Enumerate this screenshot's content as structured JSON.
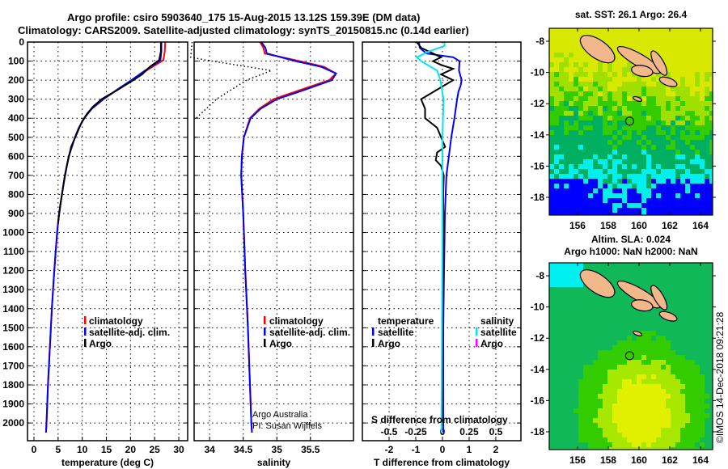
{
  "title_line1": "Argo profile: csiro 5903640_175 15-Aug-2015 13.12S 159.39E (DM data)",
  "title_line2": "Climatology: CARS2009. Satellite-adjusted climatology: synTS_20150815.nc (0.14d earlier)",
  "colors": {
    "climatology": "#ff0000",
    "satellite": "#0000ff",
    "argo": "#000000",
    "sal_satellite": "#00e5ee",
    "sal_argo": "#ff00ff"
  },
  "chart_data": [
    {
      "type": "line",
      "name": "temperature",
      "xlabel": "temperature (deg C)",
      "ylabel": "depth",
      "xlim": [
        -1.34,
        31.84
      ],
      "ylim": [
        2093,
        0
      ],
      "xticks": [
        0,
        5,
        10,
        15,
        20,
        25,
        30
      ],
      "yticks": [
        0,
        100,
        200,
        300,
        400,
        500,
        600,
        700,
        800,
        900,
        1000,
        1100,
        1200,
        1300,
        1400,
        1500,
        1600,
        1700,
        1800,
        1900,
        2000
      ],
      "legend": [
        "climatology",
        "satellite-adj. clim.",
        "Argo"
      ],
      "series": [
        {
          "name": "climatology",
          "color": "#ff0000",
          "depth": [
            0,
            50,
            95,
            150,
            200,
            250,
            300,
            350,
            400,
            450,
            500,
            600,
            700,
            800,
            900,
            1000,
            1200,
            1400,
            1600,
            1800,
            2000,
            2050
          ],
          "values": [
            27.2,
            27.1,
            26.8,
            23.3,
            20.5,
            17.4,
            14.3,
            11.9,
            10.4,
            9.3,
            8.5,
            7.2,
            6.4,
            5.8,
            5.2,
            4.8,
            4.2,
            3.7,
            3.3,
            2.9,
            2.6,
            2.5
          ]
        },
        {
          "name": "satellite-adj. clim.",
          "color": "#0000ff",
          "depth": [
            0,
            50,
            95,
            150,
            200,
            250,
            300,
            350,
            400,
            450,
            500,
            600,
            700,
            800,
            900,
            1000,
            1200,
            1400,
            1600,
            1800,
            2000,
            2050
          ],
          "values": [
            26.4,
            26.4,
            26.2,
            23.0,
            20.2,
            17.2,
            14.4,
            12.0,
            10.4,
            9.3,
            8.5,
            7.2,
            6.4,
            5.8,
            5.2,
            4.8,
            4.2,
            3.7,
            3.3,
            2.9,
            2.6,
            2.5
          ]
        },
        {
          "name": "Argo",
          "color": "#000000",
          "depth": [
            0,
            50,
            95,
            130,
            170,
            200,
            250,
            300,
            340,
            380,
            420,
            480,
            550,
            650,
            750,
            850,
            950
          ],
          "values": [
            26.3,
            26.3,
            25.9,
            24.0,
            22.4,
            20.6,
            17.4,
            14.0,
            12.2,
            10.9,
            9.9,
            8.9,
            7.7,
            6.8,
            6.1,
            5.5,
            5.0
          ]
        }
      ]
    },
    {
      "type": "line",
      "name": "salinity",
      "xlabel": "salinity",
      "xlim": [
        33.77,
        36.14
      ],
      "ylim": [
        2093,
        0
      ],
      "xticks": [
        34,
        34.5,
        35,
        35.5
      ],
      "legend": [
        "climatology",
        "satellite-adj. clim.",
        "Argo"
      ],
      "series": [
        {
          "name": "climatology",
          "color": "#ff0000",
          "depth": [
            0,
            30,
            60,
            100,
            130,
            165,
            200,
            250,
            300,
            350,
            400,
            500,
            600,
            700,
            900,
            1200,
            1500,
            2000,
            2050
          ],
          "values": [
            34.75,
            34.8,
            34.82,
            35.34,
            35.7,
            35.88,
            35.78,
            35.36,
            34.95,
            34.74,
            34.6,
            34.51,
            34.48,
            34.47,
            34.5,
            34.53,
            34.57,
            34.62,
            34.63
          ]
        },
        {
          "name": "satellite-adj. clim.",
          "color": "#0000ff",
          "depth": [
            0,
            30,
            60,
            100,
            130,
            165,
            200,
            250,
            300,
            350,
            400,
            500,
            600,
            700,
            900,
            1200,
            1500,
            2000,
            2050
          ],
          "values": [
            34.77,
            34.83,
            34.85,
            35.28,
            35.66,
            35.88,
            35.82,
            35.42,
            35.0,
            34.76,
            34.61,
            34.51,
            34.48,
            34.47,
            34.5,
            34.53,
            34.57,
            34.62,
            34.63
          ]
        },
        {
          "name": "Argo",
          "color": "#000000",
          "dotted": true,
          "depth": [
            0,
            80,
            95,
            150,
            200,
            300,
            400
          ],
          "values": [
            33.74,
            33.72,
            33.95,
            34.92,
            34.55,
            34.1,
            33.8
          ]
        }
      ]
    },
    {
      "type": "line",
      "name": "difference",
      "xlabel": "T difference from climatology",
      "x2label": "S difference from climatology",
      "xlim": [
        -3.0,
        2.94
      ],
      "ylim": [
        2093,
        0
      ],
      "xticks": [
        -2,
        -1,
        0,
        1,
        2
      ],
      "x2ticks": [
        "-0.5",
        "-0.25",
        "0",
        "0.25",
        "0.5"
      ],
      "legend": {
        "temperature_heading": "temperature",
        "salinity_heading": "salinity",
        "satellite": "satellite",
        "argo": "Argo"
      },
      "series": [
        {
          "name": "T satellite",
          "color": "#0000ff",
          "depth": [
            0,
            30,
            60,
            80,
            100,
            150,
            200,
            230,
            260,
            300,
            400,
            500,
            600,
            700,
            900,
            1500,
            2000,
            2050
          ],
          "values": [
            -0.88,
            -0.85,
            -0.6,
            0.4,
            0.64,
            0.62,
            0.72,
            0.68,
            0.6,
            0.55,
            0.45,
            0.33,
            0.24,
            0.15,
            0.09,
            0.03,
            0.03,
            0.03
          ]
        },
        {
          "name": "T Argo",
          "color": "#000000",
          "depth": [
            0,
            30,
            80,
            100,
            120,
            140,
            170,
            200,
            250,
            300,
            350,
            400,
            450,
            500,
            550,
            580,
            620,
            650,
            700,
            800,
            2000
          ],
          "values": [
            -0.96,
            -0.8,
            -0.05,
            -0.35,
            -0.05,
            0.4,
            -0.05,
            0.4,
            -0.2,
            -0.8,
            -0.65,
            -0.65,
            -0.2,
            -0.05,
            0.1,
            -0.2,
            -0.25,
            -0.05,
            0.05,
            0.03,
            0.0
          ]
        },
        {
          "name": "S satellite",
          "color": "#00e5ee",
          "scale": "S",
          "depth": [
            0,
            20,
            50,
            80,
            100,
            150,
            200,
            300,
            500,
            1000,
            2000,
            2050
          ],
          "values": [
            0.02,
            0.02,
            -0.13,
            -0.24,
            -0.2,
            -0.05,
            -0.02,
            0.01,
            0.0,
            0.0,
            -0.01,
            -0.01
          ]
        }
      ]
    }
  ],
  "annotation": {
    "line1": "Argo Australia",
    "line2": "PI: Susan Wijffels"
  },
  "maps": [
    {
      "title": "sat. SST: 26.1 Argo: 26.4",
      "lon_ticks": [
        "156",
        "158",
        "160",
        "162",
        "164"
      ],
      "lat_ticks": [
        "-8",
        "-10",
        "-12",
        "-14",
        "-16",
        "-18"
      ],
      "argo_lon": 159.39,
      "argo_lat": -13.12
    },
    {
      "title_line1": "Altim. SLA: 0.024",
      "title_line2": "Argo h1000: NaN h2000: NaN",
      "lon_ticks": [
        "156",
        "158",
        "160",
        "162",
        "164"
      ],
      "lat_ticks": [
        "-8",
        "-10",
        "-12",
        "-14",
        "-16",
        "-18"
      ],
      "argo_lon": 159.39,
      "argo_lat": -13.12
    }
  ],
  "footer": "©IMOS 14-Dec-2018 09:21:28"
}
